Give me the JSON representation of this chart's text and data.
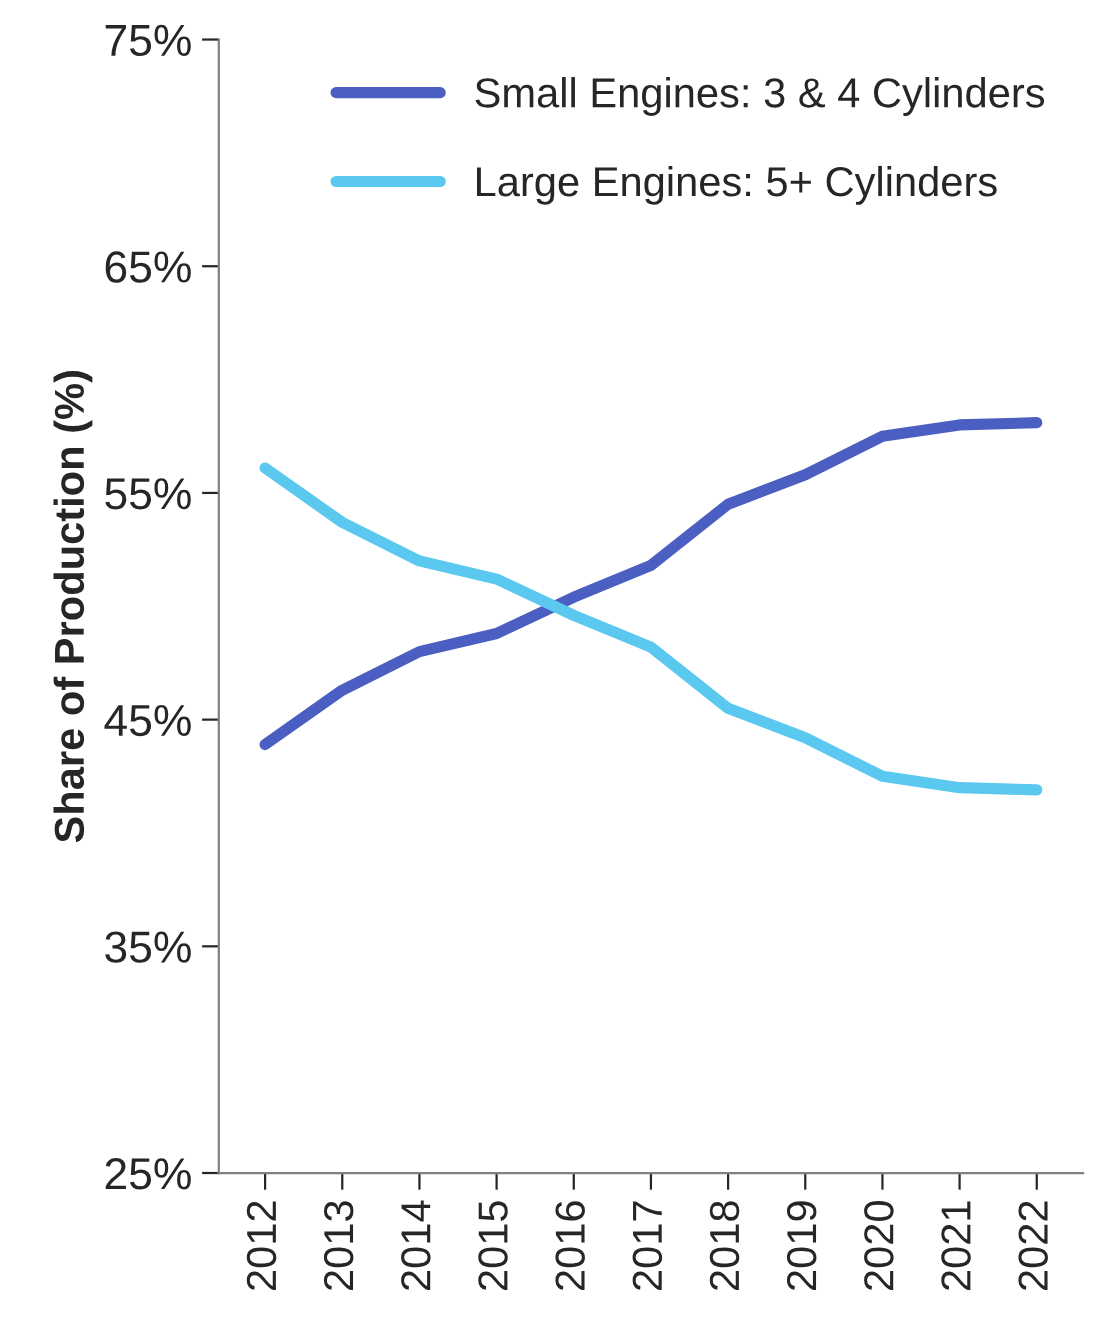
{
  "chart_data": {
    "type": "line",
    "ylabel": "Share of Production (%)",
    "categories": [
      "2012",
      "2013",
      "2014",
      "2015",
      "2016",
      "2017",
      "2018",
      "2019",
      "2020",
      "2021",
      "2022"
    ],
    "series": [
      {
        "name": "Small Engines: 3 & 4 Cylinders",
        "color": "#4a5fc1",
        "values": [
          43.9,
          46.3,
          48.0,
          48.8,
          50.4,
          51.8,
          54.5,
          55.8,
          57.5,
          58.0,
          58.1
        ]
      },
      {
        "name": "Large Engines: 5+ Cylinders",
        "color": "#5bc8f0",
        "values": [
          56.1,
          53.7,
          52.0,
          51.2,
          49.6,
          48.2,
          45.5,
          44.2,
          42.5,
          42.0,
          41.9
        ]
      }
    ],
    "ylim": [
      25,
      75
    ],
    "yticks": [
      {
        "value": 25,
        "label": "25%"
      },
      {
        "value": 35,
        "label": "35%"
      },
      {
        "value": 45,
        "label": "45%"
      },
      {
        "value": 55,
        "label": "55%"
      },
      {
        "value": 65,
        "label": "65%"
      },
      {
        "value": 75,
        "label": "75%"
      }
    ],
    "grid": false,
    "legend": "top right",
    "marker": "none",
    "line_style": "solid"
  }
}
